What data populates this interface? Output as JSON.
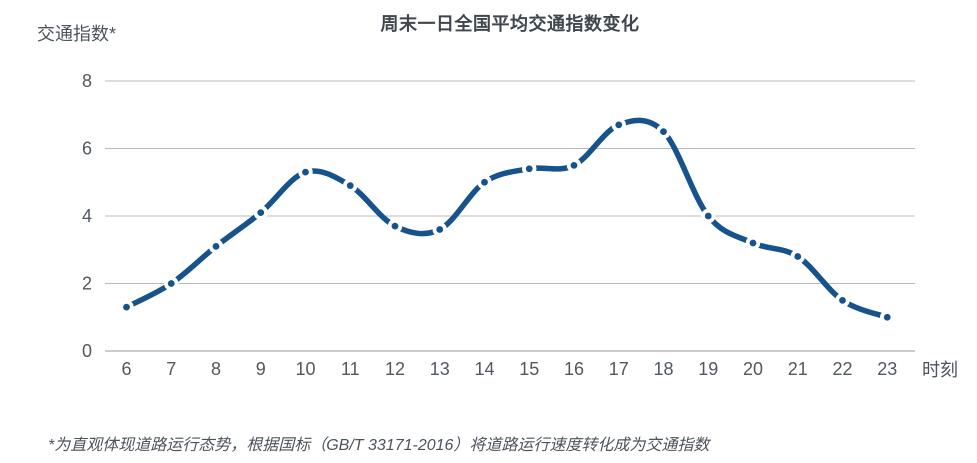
{
  "chart": {
    "title": "周末一日全国平均交通指数变化",
    "y_axis_title": "交通指数*",
    "x_axis_title": "时刻",
    "footnote": "*为直观体现道路运行态势，根据国标（GB/T 33171-2016）将道路运行速度转化成为交通指数"
  },
  "colors": {
    "line": "#16528C",
    "marker_ring": "#ffffff",
    "marker_dot": "#16528C",
    "gridline": "#b7bbbe",
    "axis_line": "#b7bbbe",
    "title_text": "#3f464e",
    "label_text": "#51585f",
    "background": "#ffffff"
  },
  "chart_data": {
    "type": "line",
    "title": "周末一日全国平均交通指数变化",
    "xlabel": "时刻",
    "ylabel": "交通指数*",
    "x": [
      6,
      7,
      8,
      9,
      10,
      11,
      12,
      13,
      14,
      15,
      16,
      17,
      18,
      19,
      20,
      21,
      22,
      23
    ],
    "values": [
      1.3,
      2.0,
      3.1,
      4.1,
      5.3,
      4.9,
      3.7,
      3.6,
      5.0,
      5.4,
      5.5,
      6.7,
      6.5,
      4.0,
      3.2,
      2.8,
      1.5,
      1.0
    ],
    "ylim": [
      0,
      8
    ],
    "yticks": [
      0,
      2,
      4,
      6,
      8
    ],
    "grid": "horizontal",
    "legend": "none",
    "smooth": true,
    "marker": "circle-white-ring",
    "footnote": "*为直观体现道路运行态势，根据国标（GB/T 33171-2016）将道路运行速度转化成为交通指数"
  }
}
